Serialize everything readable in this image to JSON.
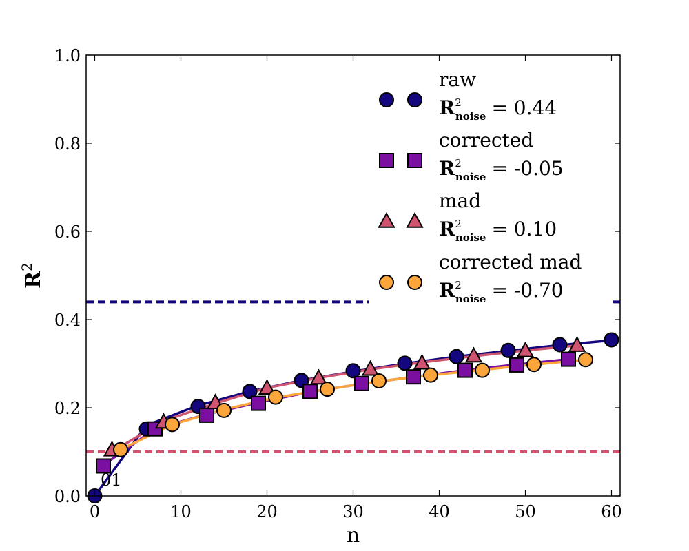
{
  "chart_data": {
    "type": "line",
    "xlabel": "n",
    "ylabel": "R",
    "ylabel_superscript": "2",
    "xlim": [
      -1,
      61
    ],
    "ylim": [
      0.0,
      1.0
    ],
    "xticks": [
      0,
      10,
      20,
      30,
      40,
      50,
      60
    ],
    "yticks": [
      0.0,
      0.2,
      0.4,
      0.6,
      0.8,
      1.0
    ],
    "xtick_labels": [
      "0",
      "10",
      "20",
      "30",
      "40",
      "50",
      "60"
    ],
    "ytick_labels": [
      "0.0",
      "0.2",
      "0.4",
      "0.6",
      "0.8",
      "1.0"
    ],
    "grid": false,
    "legend_position": "top-right",
    "noise_label_base": "R",
    "noise_label_sup": "2",
    "noise_label_sub": "noise",
    "annotation": "01",
    "series": [
      {
        "name": "raw",
        "noise_value": 0.44,
        "noise_text": "=  0.44",
        "color": "#13067f",
        "marker": "circle",
        "x": [
          0,
          6,
          12,
          18,
          24,
          30,
          36,
          42,
          48,
          54,
          60
        ],
        "y": [
          0.0,
          0.152,
          0.203,
          0.237,
          0.262,
          0.284,
          0.301,
          0.316,
          0.33,
          0.343,
          0.354
        ],
        "fit_y": [
          0.0,
          0.16,
          0.205,
          0.237,
          0.262,
          0.282,
          0.3,
          0.316,
          0.329,
          0.342,
          0.353
        ]
      },
      {
        "name": "corrected",
        "noise_value": -0.05,
        "noise_text": "=  -0.05",
        "color": "#7a0fa1",
        "marker": "square",
        "x": [
          1,
          7,
          13,
          19,
          25,
          31,
          37,
          43,
          49,
          55
        ],
        "y": [
          0.068,
          0.152,
          0.183,
          0.21,
          0.237,
          0.255,
          0.27,
          0.285,
          0.297,
          0.31
        ],
        "fit_y": [
          0.07,
          0.152,
          0.185,
          0.212,
          0.236,
          0.254,
          0.27,
          0.285,
          0.298,
          0.31
        ]
      },
      {
        "name": "mad",
        "noise_value": 0.1,
        "noise_text": "=  0.10",
        "color": "#d0546f",
        "marker": "triangle",
        "x": [
          2,
          8,
          14,
          20,
          26,
          32,
          38,
          44,
          50,
          56
        ],
        "y": [
          0.105,
          0.168,
          0.212,
          0.245,
          0.268,
          0.288,
          0.302,
          0.318,
          0.33,
          0.342
        ],
        "fit_y": [
          0.1,
          0.17,
          0.21,
          0.245,
          0.268,
          0.287,
          0.303,
          0.317,
          0.33,
          0.341
        ]
      },
      {
        "name": "corrected mad",
        "noise_value": -0.7,
        "noise_text": "=  -0.70",
        "color": "#fba53a",
        "marker": "circle",
        "x": [
          3,
          9,
          15,
          21,
          27,
          33,
          39,
          45,
          51,
          57
        ],
        "y": [
          0.105,
          0.162,
          0.194,
          0.224,
          0.242,
          0.261,
          0.274,
          0.285,
          0.298,
          0.309
        ],
        "fit_y": [
          0.105,
          0.162,
          0.196,
          0.223,
          0.242,
          0.26,
          0.274,
          0.286,
          0.298,
          0.309
        ]
      }
    ]
  }
}
